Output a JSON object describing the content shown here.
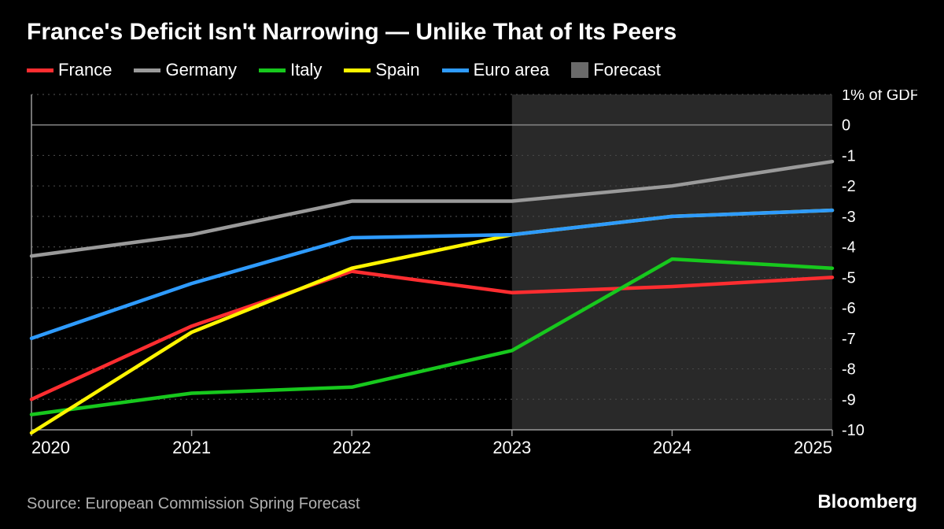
{
  "title": "France's Deficit Isn't Narrowing — Unlike That of Its Peers",
  "source": "Source: European Commission Spring Forecast",
  "brand": "Bloomberg",
  "chart": {
    "type": "line",
    "background_color": "#000000",
    "forecast_band_color": "#4a4a4a",
    "forecast_band_opacity": 0.55,
    "grid_color": "#454545",
    "axis_color": "#9a9a9a",
    "zero_line_color": "#808080",
    "tick_color": "#ffffff",
    "x": {
      "categories": [
        "2020",
        "2021",
        "2022",
        "2023",
        "2024",
        "2025"
      ],
      "label_fontsize": 22
    },
    "y": {
      "min": -10,
      "max": 1,
      "tick_step": 1,
      "unit_label": "1% of GDP",
      "label_fontsize": 20
    },
    "forecast_start_category": "2023",
    "line_width": 4.5,
    "series": [
      {
        "name": "France",
        "color": "#ff2d30",
        "values": [
          -9.0,
          -6.6,
          -4.8,
          -5.5,
          -5.3,
          -5.0
        ]
      },
      {
        "name": "Germany",
        "color": "#9a9a9a",
        "values": [
          -4.3,
          -3.6,
          -2.5,
          -2.5,
          -2.0,
          -1.2
        ]
      },
      {
        "name": "Italy",
        "color": "#17c81d",
        "values": [
          -9.5,
          -8.8,
          -8.6,
          -7.4,
          -4.4,
          -4.7
        ]
      },
      {
        "name": "Spain",
        "color": "#fff500",
        "values": [
          -10.1,
          -6.8,
          -4.7,
          -3.6,
          -3.0,
          -2.8
        ]
      },
      {
        "name": "Euro area",
        "color": "#2e9bff",
        "values": [
          -7.0,
          -5.2,
          -3.7,
          -3.6,
          -3.0,
          -2.8
        ]
      }
    ],
    "legend_extra": {
      "name": "Forecast",
      "color": "#6a6a6a"
    }
  }
}
